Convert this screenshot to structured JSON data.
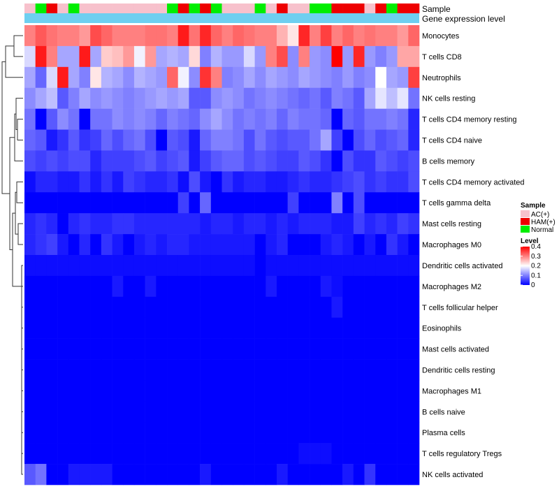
{
  "chart_data": {
    "type": "heatmap",
    "title": "",
    "sample_annotation_label": "Sample",
    "expression_annotation_label": "Gene expression level",
    "rows": [
      "Monocytes",
      "T cells CD8",
      "Neutrophils",
      "NK cells resting",
      "T cells CD4 memory resting",
      "T cells CD4 naive",
      "B cells memory",
      "T cells CD4 memory activated",
      "T cells gamma delta",
      "Mast cells resting",
      "Macrophages M0",
      "Dendritic cells activated",
      "Macrophages M2",
      "T cells follicular helper",
      "Eosinophils",
      "Mast cells activated",
      "Dendritic cells resting",
      "Macrophages M1",
      "B cells naive",
      "Plasma cells",
      "T cells regulatory  Tregs",
      "NK cells activated"
    ],
    "column_samples": [
      "AC(+)",
      "Normal",
      "HAM(+)",
      "AC(+)",
      "Normal",
      "AC(+)",
      "AC(+)",
      "AC(+)",
      "AC(+)",
      "AC(+)",
      "AC(+)",
      "AC(+)",
      "AC(+)",
      "Normal",
      "HAM(+)",
      "Normal",
      "HAM(+)",
      "Normal",
      "AC(+)",
      "AC(+)",
      "AC(+)",
      "Normal",
      "AC(+)",
      "HAM(+)",
      "AC(+)",
      "AC(+)",
      "Normal",
      "Normal",
      "HAM(+)",
      "HAM(+)",
      "HAM(+)",
      "AC(+)",
      "HAM(+)",
      "Normal",
      "HAM(+)",
      "HAM(+)"
    ],
    "values": [
      [
        0.3,
        0.33,
        0.31,
        0.3,
        0.3,
        0.28,
        0.34,
        0.32,
        0.3,
        0.3,
        0.3,
        0.31,
        0.31,
        0.3,
        0.38,
        0.31,
        0.37,
        0.32,
        0.3,
        0.32,
        0.31,
        0.3,
        0.3,
        0.26,
        0.22,
        0.37,
        0.3,
        0.35,
        0.3,
        0.32,
        0.3,
        0.31,
        0.3,
        0.3,
        0.28,
        0.32
      ],
      [
        0.17,
        0.38,
        0.3,
        0.13,
        0.13,
        0.38,
        0.13,
        0.24,
        0.25,
        0.28,
        0.19,
        0.28,
        0.13,
        0.14,
        0.13,
        0.23,
        0.1,
        0.14,
        0.12,
        0.12,
        0.17,
        0.12,
        0.3,
        0.34,
        0.11,
        0.3,
        0.12,
        0.11,
        0.4,
        0.12,
        0.37,
        0.12,
        0.1,
        0.12,
        0.27,
        0.27
      ],
      [
        0.13,
        0.08,
        0.17,
        0.38,
        0.13,
        0.1,
        0.22,
        0.14,
        0.13,
        0.11,
        0.14,
        0.13,
        0.12,
        0.32,
        0.19,
        0.11,
        0.36,
        0.3,
        0.1,
        0.11,
        0.13,
        0.11,
        0.13,
        0.12,
        0.11,
        0.13,
        0.12,
        0.11,
        0.1,
        0.12,
        0.1,
        0.11,
        0.2,
        0.13,
        0.12,
        0.35
      ],
      [
        0.11,
        0.13,
        0.15,
        0.07,
        0.1,
        0.13,
        0.11,
        0.12,
        0.11,
        0.1,
        0.11,
        0.12,
        0.13,
        0.12,
        0.13,
        0.07,
        0.07,
        0.11,
        0.12,
        0.11,
        0.09,
        0.1,
        0.11,
        0.1,
        0.09,
        0.08,
        0.09,
        0.07,
        0.1,
        0.09,
        0.07,
        0.13,
        0.18,
        0.15,
        0.18,
        0.09
      ],
      [
        0.09,
        0.0,
        0.07,
        0.11,
        0.09,
        0.0,
        0.09,
        0.09,
        0.11,
        0.1,
        0.11,
        0.1,
        0.08,
        0.1,
        0.09,
        0.08,
        0.11,
        0.13,
        0.11,
        0.09,
        0.1,
        0.09,
        0.1,
        0.08,
        0.1,
        0.09,
        0.09,
        0.08,
        0.0,
        0.08,
        0.07,
        0.09,
        0.09,
        0.1,
        0.09,
        0.03
      ],
      [
        0.08,
        0.07,
        0.02,
        0.04,
        0.07,
        0.04,
        0.05,
        0.08,
        0.06,
        0.08,
        0.09,
        0.06,
        0.0,
        0.07,
        0.06,
        0.02,
        0.08,
        0.1,
        0.1,
        0.09,
        0.06,
        0.09,
        0.07,
        0.06,
        0.07,
        0.07,
        0.09,
        0.13,
        0.05,
        0.0,
        0.06,
        0.08,
        0.06,
        0.07,
        0.08,
        0.03
      ],
      [
        0.06,
        0.05,
        0.06,
        0.05,
        0.06,
        0.06,
        0.03,
        0.05,
        0.05,
        0.05,
        0.06,
        0.07,
        0.05,
        0.06,
        0.07,
        0.02,
        0.05,
        0.07,
        0.08,
        0.08,
        0.06,
        0.07,
        0.06,
        0.05,
        0.05,
        0.07,
        0.06,
        0.04,
        0.0,
        0.06,
        0.04,
        0.04,
        0.07,
        0.06,
        0.05,
        0.06
      ],
      [
        0.01,
        0.03,
        0.03,
        0.02,
        0.02,
        0.04,
        0.02,
        0.04,
        0.02,
        0.05,
        0.04,
        0.03,
        0.03,
        0.04,
        0.01,
        0.06,
        0.02,
        0.0,
        0.04,
        0.02,
        0.03,
        0.03,
        0.02,
        0.02,
        0.03,
        0.04,
        0.03,
        0.03,
        0.04,
        0.05,
        0.06,
        0.04,
        0.05,
        0.04,
        0.04,
        0.06
      ],
      [
        0.0,
        0.0,
        0.0,
        0.0,
        0.0,
        0.0,
        0.0,
        0.0,
        0.0,
        0.0,
        0.0,
        0.0,
        0.0,
        0.0,
        0.05,
        0.0,
        0.08,
        0.0,
        0.0,
        0.0,
        0.0,
        0.0,
        0.0,
        0.0,
        0.05,
        0.0,
        0.0,
        0.0,
        0.1,
        0.0,
        0.06,
        0.0,
        0.0,
        0.0,
        0.0,
        0.0
      ],
      [
        0.03,
        0.04,
        0.03,
        0.0,
        0.03,
        0.04,
        0.03,
        0.03,
        0.04,
        0.04,
        0.03,
        0.03,
        0.03,
        0.03,
        0.03,
        0.03,
        0.02,
        0.03,
        0.03,
        0.02,
        0.03,
        0.03,
        0.02,
        0.03,
        0.02,
        0.03,
        0.03,
        0.03,
        0.02,
        0.02,
        0.05,
        0.03,
        0.04,
        0.03,
        0.05,
        0.04
      ],
      [
        0.03,
        0.04,
        0.05,
        0.02,
        0.0,
        0.03,
        0.0,
        0.04,
        0.02,
        0.0,
        0.02,
        0.03,
        0.02,
        0.03,
        0.03,
        0.02,
        0.02,
        0.02,
        0.02,
        0.02,
        0.02,
        0.0,
        0.02,
        0.03,
        0.0,
        0.0,
        0.0,
        0.02,
        0.03,
        0.02,
        0.0,
        0.02,
        0.0,
        0.04,
        0.02,
        0.0
      ],
      [
        0.01,
        0.01,
        0.01,
        0.01,
        0.01,
        0.01,
        0.01,
        0.01,
        0.01,
        0.01,
        0.01,
        0.01,
        0.01,
        0.01,
        0.01,
        0.01,
        0.01,
        0.01,
        0.01,
        0.01,
        0.01,
        0.0,
        0.01,
        0.01,
        0.01,
        0.01,
        0.01,
        0.01,
        0.01,
        0.01,
        0.01,
        0.01,
        0.01,
        0.01,
        0.01,
        0.01
      ],
      [
        0.0,
        0.0,
        0.0,
        0.0,
        0.0,
        0.0,
        0.0,
        0.0,
        0.02,
        0.0,
        0.0,
        0.02,
        0.0,
        0.0,
        0.0,
        0.0,
        0.0,
        0.0,
        0.0,
        0.0,
        0.0,
        0.0,
        0.02,
        0.0,
        0.0,
        0.0,
        0.0,
        0.02,
        0.01,
        0.0,
        0.0,
        0.0,
        0.0,
        0.0,
        0.0,
        0.0
      ],
      [
        0.0,
        0.0,
        0.0,
        0.0,
        0.0,
        0.0,
        0.0,
        0.0,
        0.0,
        0.0,
        0.0,
        0.0,
        0.0,
        0.0,
        0.0,
        0.0,
        0.0,
        0.0,
        0.0,
        0.0,
        0.0,
        0.0,
        0.0,
        0.0,
        0.0,
        0.0,
        0.0,
        0.0,
        0.02,
        0.0,
        0.0,
        0.0,
        0.0,
        0.0,
        0.0,
        0.0
      ],
      [
        0.0,
        0.0,
        0.0,
        0.0,
        0.0,
        0.0,
        0.0,
        0.0,
        0.0,
        0.0,
        0.0,
        0.0,
        0.0,
        0.0,
        0.0,
        0.0,
        0.0,
        0.0,
        0.0,
        0.0,
        0.0,
        0.0,
        0.0,
        0.0,
        0.0,
        0.0,
        0.0,
        0.0,
        0.0,
        0.0,
        0.0,
        0.0,
        0.0,
        0.0,
        0.0,
        0.0
      ],
      [
        0.0,
        0.0,
        0.0,
        0.0,
        0.0,
        0.0,
        0.0,
        0.0,
        0.0,
        0.0,
        0.0,
        0.0,
        0.0,
        0.0,
        0.0,
        0.0,
        0.0,
        0.0,
        0.0,
        0.0,
        0.0,
        0.0,
        0.0,
        0.0,
        0.0,
        0.0,
        0.0,
        0.0,
        0.0,
        0.0,
        0.0,
        0.0,
        0.0,
        0.0,
        0.0,
        0.0
      ],
      [
        0.0,
        0.0,
        0.0,
        0.0,
        0.0,
        0.0,
        0.0,
        0.0,
        0.0,
        0.0,
        0.0,
        0.0,
        0.0,
        0.0,
        0.0,
        0.0,
        0.0,
        0.0,
        0.0,
        0.0,
        0.0,
        0.0,
        0.0,
        0.0,
        0.0,
        0.0,
        0.0,
        0.0,
        0.0,
        0.0,
        0.0,
        0.0,
        0.0,
        0.0,
        0.0,
        0.0
      ],
      [
        0.0,
        0.0,
        0.0,
        0.0,
        0.0,
        0.0,
        0.0,
        0.0,
        0.0,
        0.0,
        0.0,
        0.0,
        0.0,
        0.0,
        0.0,
        0.0,
        0.0,
        0.0,
        0.0,
        0.0,
        0.0,
        0.0,
        0.0,
        0.0,
        0.0,
        0.0,
        0.0,
        0.0,
        0.0,
        0.0,
        0.0,
        0.0,
        0.0,
        0.0,
        0.0,
        0.0
      ],
      [
        0.0,
        0.0,
        0.0,
        0.0,
        0.0,
        0.0,
        0.0,
        0.0,
        0.0,
        0.0,
        0.0,
        0.0,
        0.0,
        0.0,
        0.0,
        0.0,
        0.0,
        0.0,
        0.0,
        0.0,
        0.0,
        0.0,
        0.0,
        0.0,
        0.0,
        0.0,
        0.0,
        0.0,
        0.0,
        0.0,
        0.0,
        0.0,
        0.0,
        0.0,
        0.0,
        0.0
      ],
      [
        0.0,
        0.0,
        0.0,
        0.0,
        0.0,
        0.0,
        0.0,
        0.0,
        0.0,
        0.0,
        0.0,
        0.0,
        0.0,
        0.0,
        0.0,
        0.0,
        0.0,
        0.0,
        0.0,
        0.0,
        0.0,
        0.0,
        0.0,
        0.0,
        0.0,
        0.0,
        0.0,
        0.0,
        0.0,
        0.0,
        0.0,
        0.0,
        0.0,
        0.0,
        0.0,
        0.0
      ],
      [
        0.0,
        0.0,
        0.0,
        0.0,
        0.0,
        0.0,
        0.0,
        0.0,
        0.0,
        0.0,
        0.0,
        0.0,
        0.0,
        0.0,
        0.0,
        0.0,
        0.0,
        0.0,
        0.0,
        0.0,
        0.0,
        0.0,
        0.0,
        0.0,
        0.0,
        0.01,
        0.01,
        0.01,
        0.0,
        0.0,
        0.0,
        0.0,
        0.0,
        0.0,
        0.0,
        0.0
      ],
      [
        0.07,
        0.09,
        0.0,
        0.0,
        0.02,
        0.02,
        0.02,
        0.02,
        0.0,
        0.0,
        0.0,
        0.0,
        0.0,
        0.0,
        0.0,
        0.0,
        0.02,
        0.0,
        0.0,
        0.0,
        0.0,
        0.0,
        0.0,
        0.02,
        0.0,
        0.0,
        0.0,
        0.0,
        0.0,
        0.02,
        0.0,
        0.04,
        0.0,
        0.0,
        0.0,
        0.0
      ]
    ],
    "legend_sample": {
      "title": "Sample",
      "entries": [
        {
          "label": "AC(+)",
          "color": "#f7c1cc"
        },
        {
          "label": "HAM(+)",
          "color": "#ee0000"
        },
        {
          "label": "Normal",
          "color": "#00ee00"
        }
      ]
    },
    "legend_level": {
      "title": "Level",
      "ticks": [
        "0.4",
        "0.3",
        "0.2",
        "0.1",
        "0"
      ],
      "range": [
        0,
        0.4
      ]
    },
    "expression_color": "#6ecff0",
    "color_scale": {
      "low": "#0000ff",
      "mid": "#ffffff",
      "high": "#ff0000",
      "midpoint": 0.2
    }
  }
}
